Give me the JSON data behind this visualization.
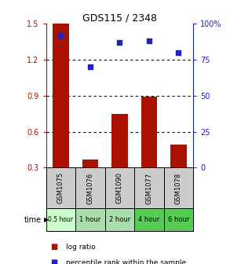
{
  "title": "GDS115 / 2348",
  "samples": [
    "GSM1075",
    "GSM1076",
    "GSM1090",
    "GSM1077",
    "GSM1078"
  ],
  "time_labels": [
    "0.5 hour",
    "1 hour",
    "2 hour",
    "4 hour",
    "6 hour"
  ],
  "time_colors": [
    "#ccffcc",
    "#aaddaa",
    "#aaddaa",
    "#55cc55",
    "#55cc55"
  ],
  "log_ratio": [
    1.5,
    0.37,
    0.75,
    0.89,
    0.49
  ],
  "percentile_rank": [
    92,
    70,
    87,
    88,
    80
  ],
  "bar_color": "#aa1100",
  "dot_color": "#2222bb",
  "ylim_left": [
    0.3,
    1.5
  ],
  "ylim_right": [
    0,
    100
  ],
  "yticks_left": [
    0.3,
    0.6,
    0.9,
    1.2,
    1.5
  ],
  "ytick_labels_left": [
    "0.3",
    "0.6",
    "0.9",
    "1.2",
    "1.5"
  ],
  "yticks_right": [
    0,
    25,
    50,
    75,
    100
  ],
  "ytick_labels_right": [
    "0",
    "25",
    "50",
    "75",
    "100%"
  ],
  "hlines": [
    0.6,
    0.9,
    1.2
  ],
  "left_tick_color": "#aa1100",
  "right_tick_color": "#2222bb",
  "sample_box_color": "#cccccc",
  "legend_log_ratio": "log ratio",
  "legend_percentile": "percentile rank within the sample",
  "time_label": "time"
}
